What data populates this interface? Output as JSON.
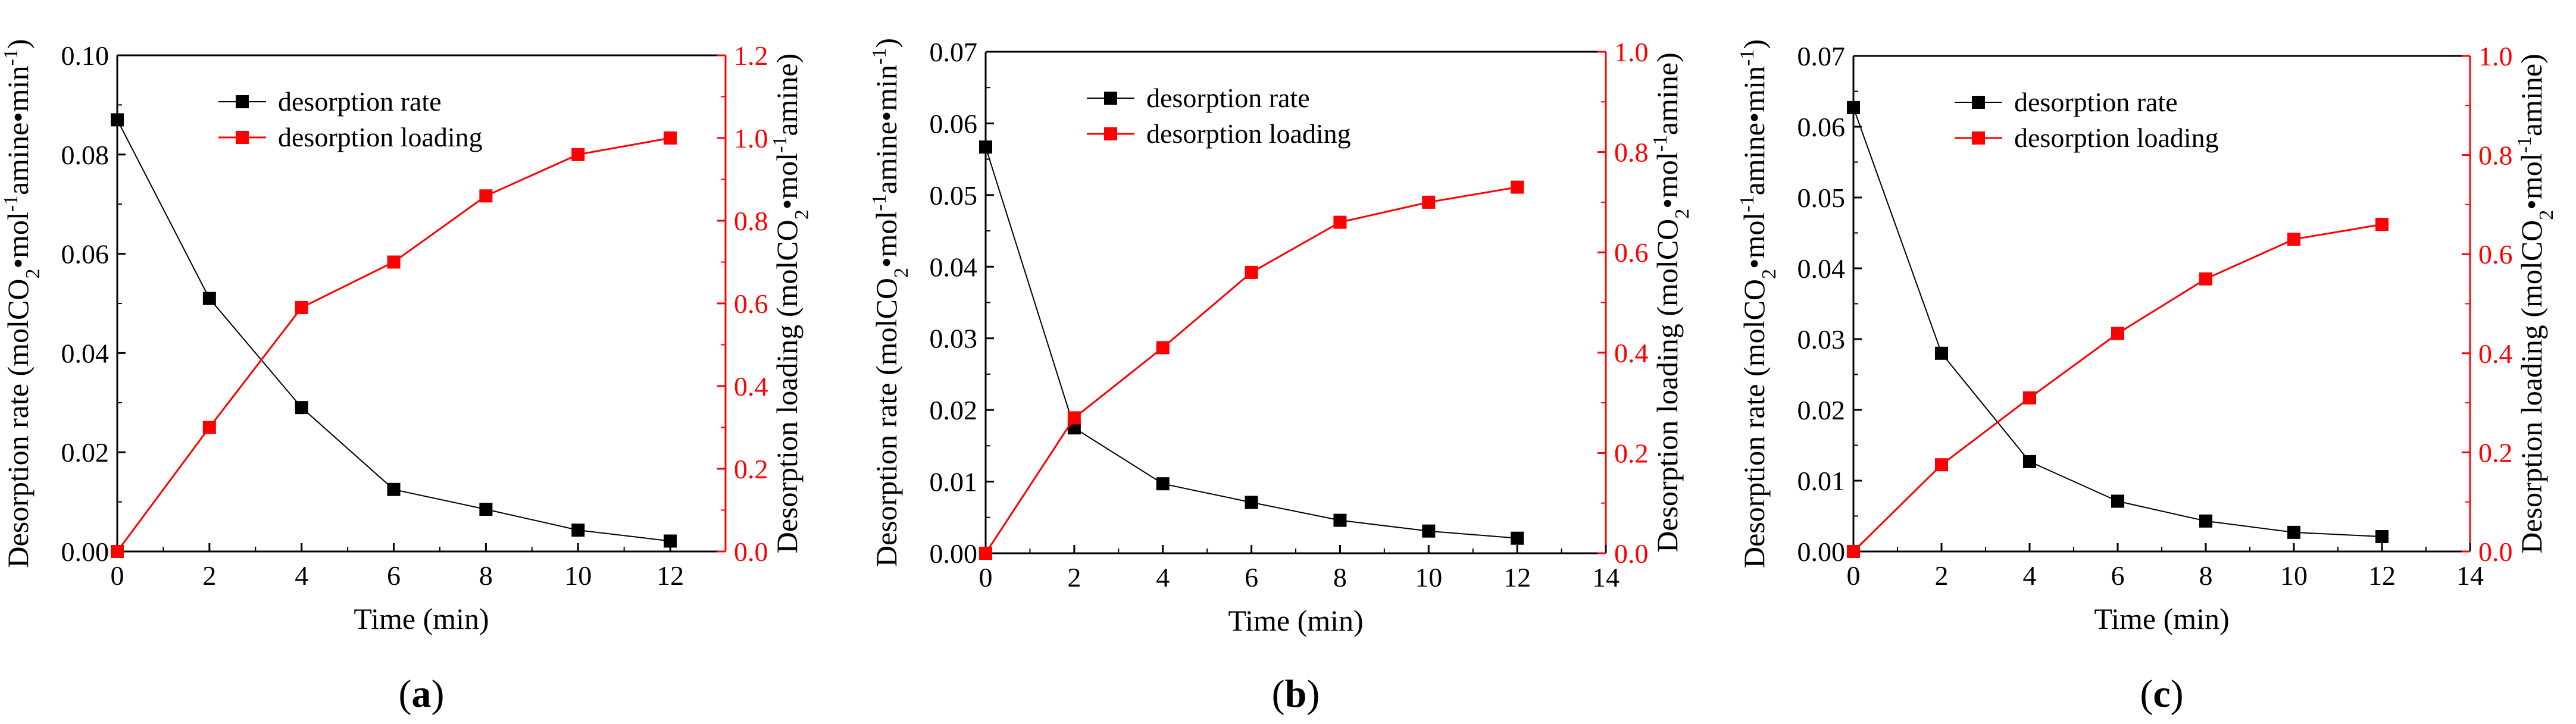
{
  "figure": {
    "legend_labels": [
      "desorption rate",
      "desorption loading"
    ],
    "series_colors": {
      "rate": "#000000",
      "loading": "#ff0000"
    }
  },
  "chart_data": [
    {
      "type": "line",
      "panel_label": "a",
      "xlabel": "Time (min)",
      "ylabel_left": "Desorption rate (molCO2•mol-1amine•min-1)",
      "ylabel_right": "Desorption loading (molCO2•mol-1amine)",
      "xlim": [
        0,
        13.2
      ],
      "xticks": [
        0,
        2,
        4,
        6,
        8,
        10,
        12
      ],
      "xtick_labels": [
        "0",
        "2",
        "4",
        "6",
        "8",
        "10",
        "12"
      ],
      "ylim_left": [
        0,
        0.1
      ],
      "yticks_left": [
        0.0,
        0.02,
        0.04,
        0.06,
        0.08,
        0.1
      ],
      "ytick_labels_left": [
        "0.00",
        "0.02",
        "0.04",
        "0.06",
        "0.08",
        "0.10"
      ],
      "ylim_right": [
        0,
        1.2
      ],
      "yticks_right": [
        0.0,
        0.2,
        0.4,
        0.6,
        0.8,
        1.0,
        1.2
      ],
      "ytick_labels_right": [
        "0.0",
        "0.2",
        "0.4",
        "0.6",
        "0.8",
        "1.0",
        "1.2"
      ],
      "x": [
        0,
        2,
        4,
        6,
        8,
        10,
        12
      ],
      "series": [
        {
          "name": "desorption rate",
          "axis": "left",
          "values": [
            0.087,
            0.051,
            0.029,
            0.0125,
            0.0085,
            0.0043,
            0.0021
          ]
        },
        {
          "name": "desorption loading",
          "axis": "right",
          "values": [
            0.0,
            0.3,
            0.59,
            0.7,
            0.86,
            0.96,
            1.0
          ]
        }
      ]
    },
    {
      "type": "line",
      "panel_label": "b",
      "xlabel": "Time (min)",
      "ylabel_left": "Desorption rate (molCO2•mol-1amine•min-1)",
      "ylabel_right": "Desorption loading (molCO2•mol-1amine)",
      "xlim": [
        0,
        14
      ],
      "xticks": [
        0,
        2,
        4,
        6,
        8,
        10,
        12,
        14
      ],
      "xtick_labels": [
        "0",
        "2",
        "4",
        "6",
        "8",
        "10",
        "12",
        "14"
      ],
      "ylim_left": [
        0,
        0.07
      ],
      "yticks_left": [
        0.0,
        0.01,
        0.02,
        0.03,
        0.04,
        0.05,
        0.06,
        0.07
      ],
      "ytick_labels_left": [
        "0.00",
        "0.01",
        "0.02",
        "0.03",
        "0.04",
        "0.05",
        "0.06",
        "0.07"
      ],
      "ylim_right": [
        0,
        1.0
      ],
      "yticks_right": [
        0.0,
        0.2,
        0.4,
        0.6,
        0.8,
        1.0
      ],
      "ytick_labels_right": [
        "0.0",
        "0.2",
        "0.4",
        "0.6",
        "0.8",
        "1.0"
      ],
      "x": [
        0,
        2,
        4,
        6,
        8,
        10,
        12
      ],
      "series": [
        {
          "name": "desorption rate",
          "axis": "left",
          "values": [
            0.0567,
            0.0175,
            0.0097,
            0.0071,
            0.0046,
            0.0031,
            0.0021
          ]
        },
        {
          "name": "desorption loading",
          "axis": "right",
          "values": [
            0.0,
            0.27,
            0.41,
            0.56,
            0.66,
            0.7,
            0.73
          ]
        }
      ]
    },
    {
      "type": "line",
      "panel_label": "c",
      "xlabel": "Time (min)",
      "ylabel_left": "Desorption rate (molCO2•mol-1amine•min-1)",
      "ylabel_right": "Desorption loading (molCO2•mol-1amine)",
      "xlim": [
        0,
        14
      ],
      "xticks": [
        0,
        2,
        4,
        6,
        8,
        10,
        12,
        14
      ],
      "xtick_labels": [
        "0",
        "2",
        "4",
        "6",
        "8",
        "10",
        "12",
        "14"
      ],
      "ylim_left": [
        0,
        0.07
      ],
      "yticks_left": [
        0.0,
        0.01,
        0.02,
        0.03,
        0.04,
        0.05,
        0.06,
        0.07
      ],
      "ytick_labels_left": [
        "0.00",
        "0.01",
        "0.02",
        "0.03",
        "0.04",
        "0.05",
        "0.06",
        "0.07"
      ],
      "ylim_right": [
        0,
        1.0
      ],
      "yticks_right": [
        0.0,
        0.2,
        0.4,
        0.6,
        0.8,
        1.0
      ],
      "ytick_labels_right": [
        "0.0",
        "0.2",
        "0.4",
        "0.6",
        "0.8",
        "1.0"
      ],
      "x": [
        0,
        2,
        4,
        6,
        8,
        10,
        12
      ],
      "series": [
        {
          "name": "desorption rate",
          "axis": "left",
          "values": [
            0.0627,
            0.028,
            0.0127,
            0.0071,
            0.0043,
            0.0027,
            0.0021
          ]
        },
        {
          "name": "desorption loading",
          "axis": "right",
          "values": [
            0.0,
            0.175,
            0.31,
            0.44,
            0.55,
            0.63,
            0.66
          ]
        }
      ]
    }
  ]
}
